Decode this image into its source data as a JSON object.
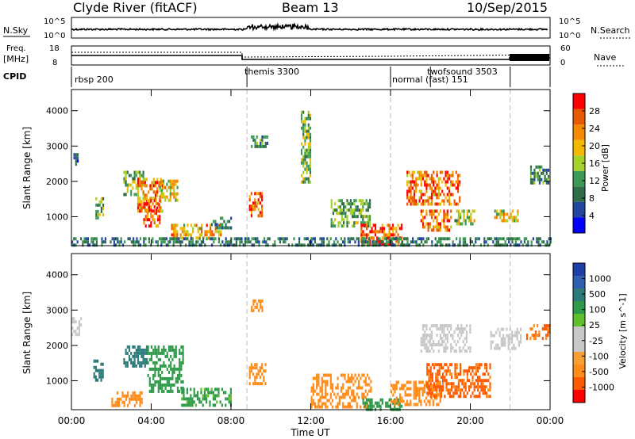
{
  "header": {
    "station": "Clyde River (fitACF)",
    "beam": "Beam 13",
    "date": "10/Sep/2015"
  },
  "summary": {
    "nsky_label": "N.Sky",
    "nsearch_label": "N.Search",
    "freq_label_1": "Freq.",
    "freq_label_2": "[MHz]",
    "nave_label": "Nave",
    "cpid_label": "CPID",
    "nsky_ticks": [
      "10^5",
      "10^0"
    ],
    "nsearch_ticks": [
      "10^5",
      "10^0"
    ],
    "freq_ticks": [
      "18",
      "8"
    ],
    "nave_ticks": [
      "60",
      "0"
    ]
  },
  "cpid_segments": [
    {
      "start": 0,
      "end": 8.8,
      "label": "rbsp 200"
    },
    {
      "start": 8.8,
      "end": 16.0,
      "label": "themis 3300"
    },
    {
      "start": 16.0,
      "end": 24,
      "label": "normal (fast) 151"
    },
    {
      "start": 18.0,
      "end": 24,
      "label": "twofsound 3503"
    }
  ],
  "colors": {
    "power_scale": [
      "#0000ff",
      "#2346a0",
      "#2f6e47",
      "#3d9a55",
      "#a6d12a",
      "#f5b800",
      "#f58a00",
      "#e85a00",
      "#ff0000"
    ],
    "velocity_scale": [
      "#ff0000",
      "#ff5a00",
      "#ff8c1a",
      "#f5a030",
      "#c8c8c8",
      "#c8c8c8",
      "#5ec02c",
      "#2e9a4a",
      "#2c7a7a",
      "#2e5fb0",
      "#1f3fa8"
    ]
  },
  "chart_data": [
    {
      "type": "heatmap",
      "title": "",
      "xlabel": "Time UT",
      "ylabel": "Slant Range [km]",
      "xlim": [
        0,
        24
      ],
      "ylim": [
        180,
        4600
      ],
      "x_ticks": [
        "00:00",
        "04:00",
        "08:00",
        "12:00",
        "16:00",
        "20:00",
        "00:00"
      ],
      "y_ticks": [
        "1000",
        "2000",
        "3000",
        "4000"
      ],
      "colorbar": {
        "label": "Power [dB]",
        "ticks": [
          "4",
          "8",
          "12",
          "16",
          "20",
          "24",
          "28"
        ],
        "range": [
          0,
          30
        ]
      },
      "patches": [
        {
          "t": [
            0.1,
            0.3
          ],
          "r": [
            2450,
            2800
          ],
          "v": 6
        },
        {
          "t": [
            1.2,
            1.6
          ],
          "r": [
            950,
            1550
          ],
          "v": 14
        },
        {
          "t": [
            2.6,
            3.6
          ],
          "r": [
            1600,
            2300
          ],
          "v": 13
        },
        {
          "t": [
            3.3,
            4.6
          ],
          "r": [
            1200,
            2100
          ],
          "v": 22
        },
        {
          "t": [
            3.6,
            4.4
          ],
          "r": [
            700,
            1500
          ],
          "v": 27
        },
        {
          "t": [
            4.4,
            5.4
          ],
          "r": [
            1500,
            2050
          ],
          "v": 18
        },
        {
          "t": [
            5.0,
            7.5
          ],
          "r": [
            400,
            800
          ],
          "v": 20
        },
        {
          "t": [
            7.0,
            8.0
          ],
          "r": [
            700,
            1000
          ],
          "v": 9
        },
        {
          "t": [
            8.9,
            9.6
          ],
          "r": [
            1000,
            1700
          ],
          "v": 24
        },
        {
          "t": [
            9.0,
            9.8
          ],
          "r": [
            3000,
            3300
          ],
          "v": 10
        },
        {
          "t": [
            11.5,
            12.0
          ],
          "r": [
            2000,
            4000
          ],
          "v": 14
        },
        {
          "t": [
            13.0,
            15.0
          ],
          "r": [
            700,
            1500
          ],
          "v": 12
        },
        {
          "t": [
            14.5,
            16.6
          ],
          "r": [
            200,
            800
          ],
          "v": 25
        },
        {
          "t": [
            16.8,
            19.5
          ],
          "r": [
            1400,
            2300
          ],
          "v": 24
        },
        {
          "t": [
            17.5,
            19.0
          ],
          "r": [
            650,
            1200
          ],
          "v": 23
        },
        {
          "t": [
            19.2,
            20.2
          ],
          "r": [
            800,
            1200
          ],
          "v": 15
        },
        {
          "t": [
            21.2,
            22.4
          ],
          "r": [
            850,
            1200
          ],
          "v": 18
        },
        {
          "t": [
            23.0,
            23.9
          ],
          "r": [
            2000,
            2450
          ],
          "v": 10
        },
        {
          "t": [
            0,
            24
          ],
          "r": [
            180,
            420
          ],
          "v": 9
        }
      ]
    },
    {
      "type": "heatmap",
      "title": "",
      "xlabel": "Time UT",
      "ylabel": "Slant Range [km]",
      "xlim": [
        0,
        24
      ],
      "ylim": [
        180,
        4600
      ],
      "x_ticks": [
        "00:00",
        "04:00",
        "08:00",
        "12:00",
        "16:00",
        "20:00",
        "00:00"
      ],
      "y_ticks": [
        "1000",
        "2000",
        "3000",
        "4000"
      ],
      "colorbar": {
        "label": "Velocity [m s^-1]",
        "ticks": [
          "1000",
          "500",
          "100",
          "25",
          "-25",
          "-100",
          "-500",
          "-1000"
        ],
        "range": [
          -1200,
          1200
        ]
      },
      "patches": [
        {
          "t": [
            0.0,
            0.5
          ],
          "r": [
            2300,
            2800
          ],
          "v": 0
        },
        {
          "t": [
            1.1,
            1.6
          ],
          "r": [
            1000,
            1600
          ],
          "v": 700
        },
        {
          "t": [
            2.6,
            3.8
          ],
          "r": [
            1400,
            2000
          ],
          "v": 700
        },
        {
          "t": [
            3.8,
            5.6
          ],
          "r": [
            700,
            2000
          ],
          "v": 300
        },
        {
          "t": [
            5.5,
            8.0
          ],
          "r": [
            300,
            800
          ],
          "v": 120
        },
        {
          "t": [
            2.0,
            3.5
          ],
          "r": [
            300,
            700
          ],
          "v": -200
        },
        {
          "t": [
            8.9,
            9.8
          ],
          "r": [
            900,
            1500
          ],
          "v": -300
        },
        {
          "t": [
            9.0,
            9.6
          ],
          "r": [
            3000,
            3300
          ],
          "v": -200
        },
        {
          "t": [
            12.0,
            15.0
          ],
          "r": [
            300,
            1200
          ],
          "v": -300
        },
        {
          "t": [
            14.5,
            16.6
          ],
          "r": [
            200,
            500
          ],
          "v": 150
        },
        {
          "t": [
            16.0,
            18.5
          ],
          "r": [
            300,
            1000
          ],
          "v": -250
        },
        {
          "t": [
            17.8,
            21.0
          ],
          "r": [
            600,
            1500
          ],
          "v": -600
        },
        {
          "t": [
            17.5,
            20.0
          ],
          "r": [
            1800,
            2600
          ],
          "v": 0
        },
        {
          "t": [
            21.0,
            22.5
          ],
          "r": [
            1900,
            2500
          ],
          "v": 0
        },
        {
          "t": [
            22.8,
            24.0
          ],
          "r": [
            2200,
            2600
          ],
          "v": -500
        }
      ]
    }
  ]
}
